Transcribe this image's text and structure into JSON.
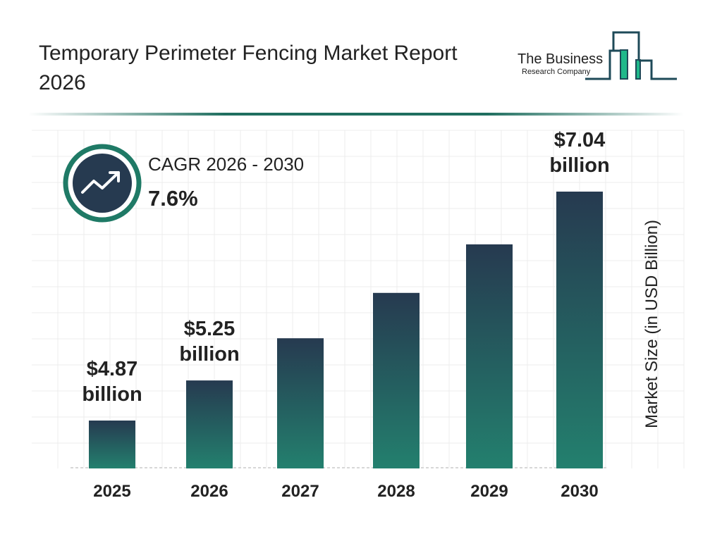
{
  "title": "Temporary Perimeter Fencing Market Report 2026",
  "logo": {
    "line1": "The Business",
    "line2": "Research Company"
  },
  "cagr": {
    "label": "CAGR 2026 - 2030",
    "value": "7.6%",
    "icon": "trending-up-icon"
  },
  "colors": {
    "bar_top": "#263a50",
    "bar_bottom": "#23806e",
    "accent": "#1f6e5f"
  },
  "chart_data": {
    "type": "bar",
    "categories": [
      "2025",
      "2026",
      "2027",
      "2028",
      "2029",
      "2030"
    ],
    "values": [
      4.87,
      5.25,
      5.65,
      6.08,
      6.54,
      7.04
    ],
    "data_labels": [
      [
        "$4.87",
        "billion"
      ],
      [
        "$5.25",
        "billion"
      ],
      null,
      null,
      null,
      [
        "$7.04",
        "billion"
      ]
    ],
    "xlabel": "",
    "ylabel": "Market Size (in USD Billion)",
    "grid": true
  }
}
